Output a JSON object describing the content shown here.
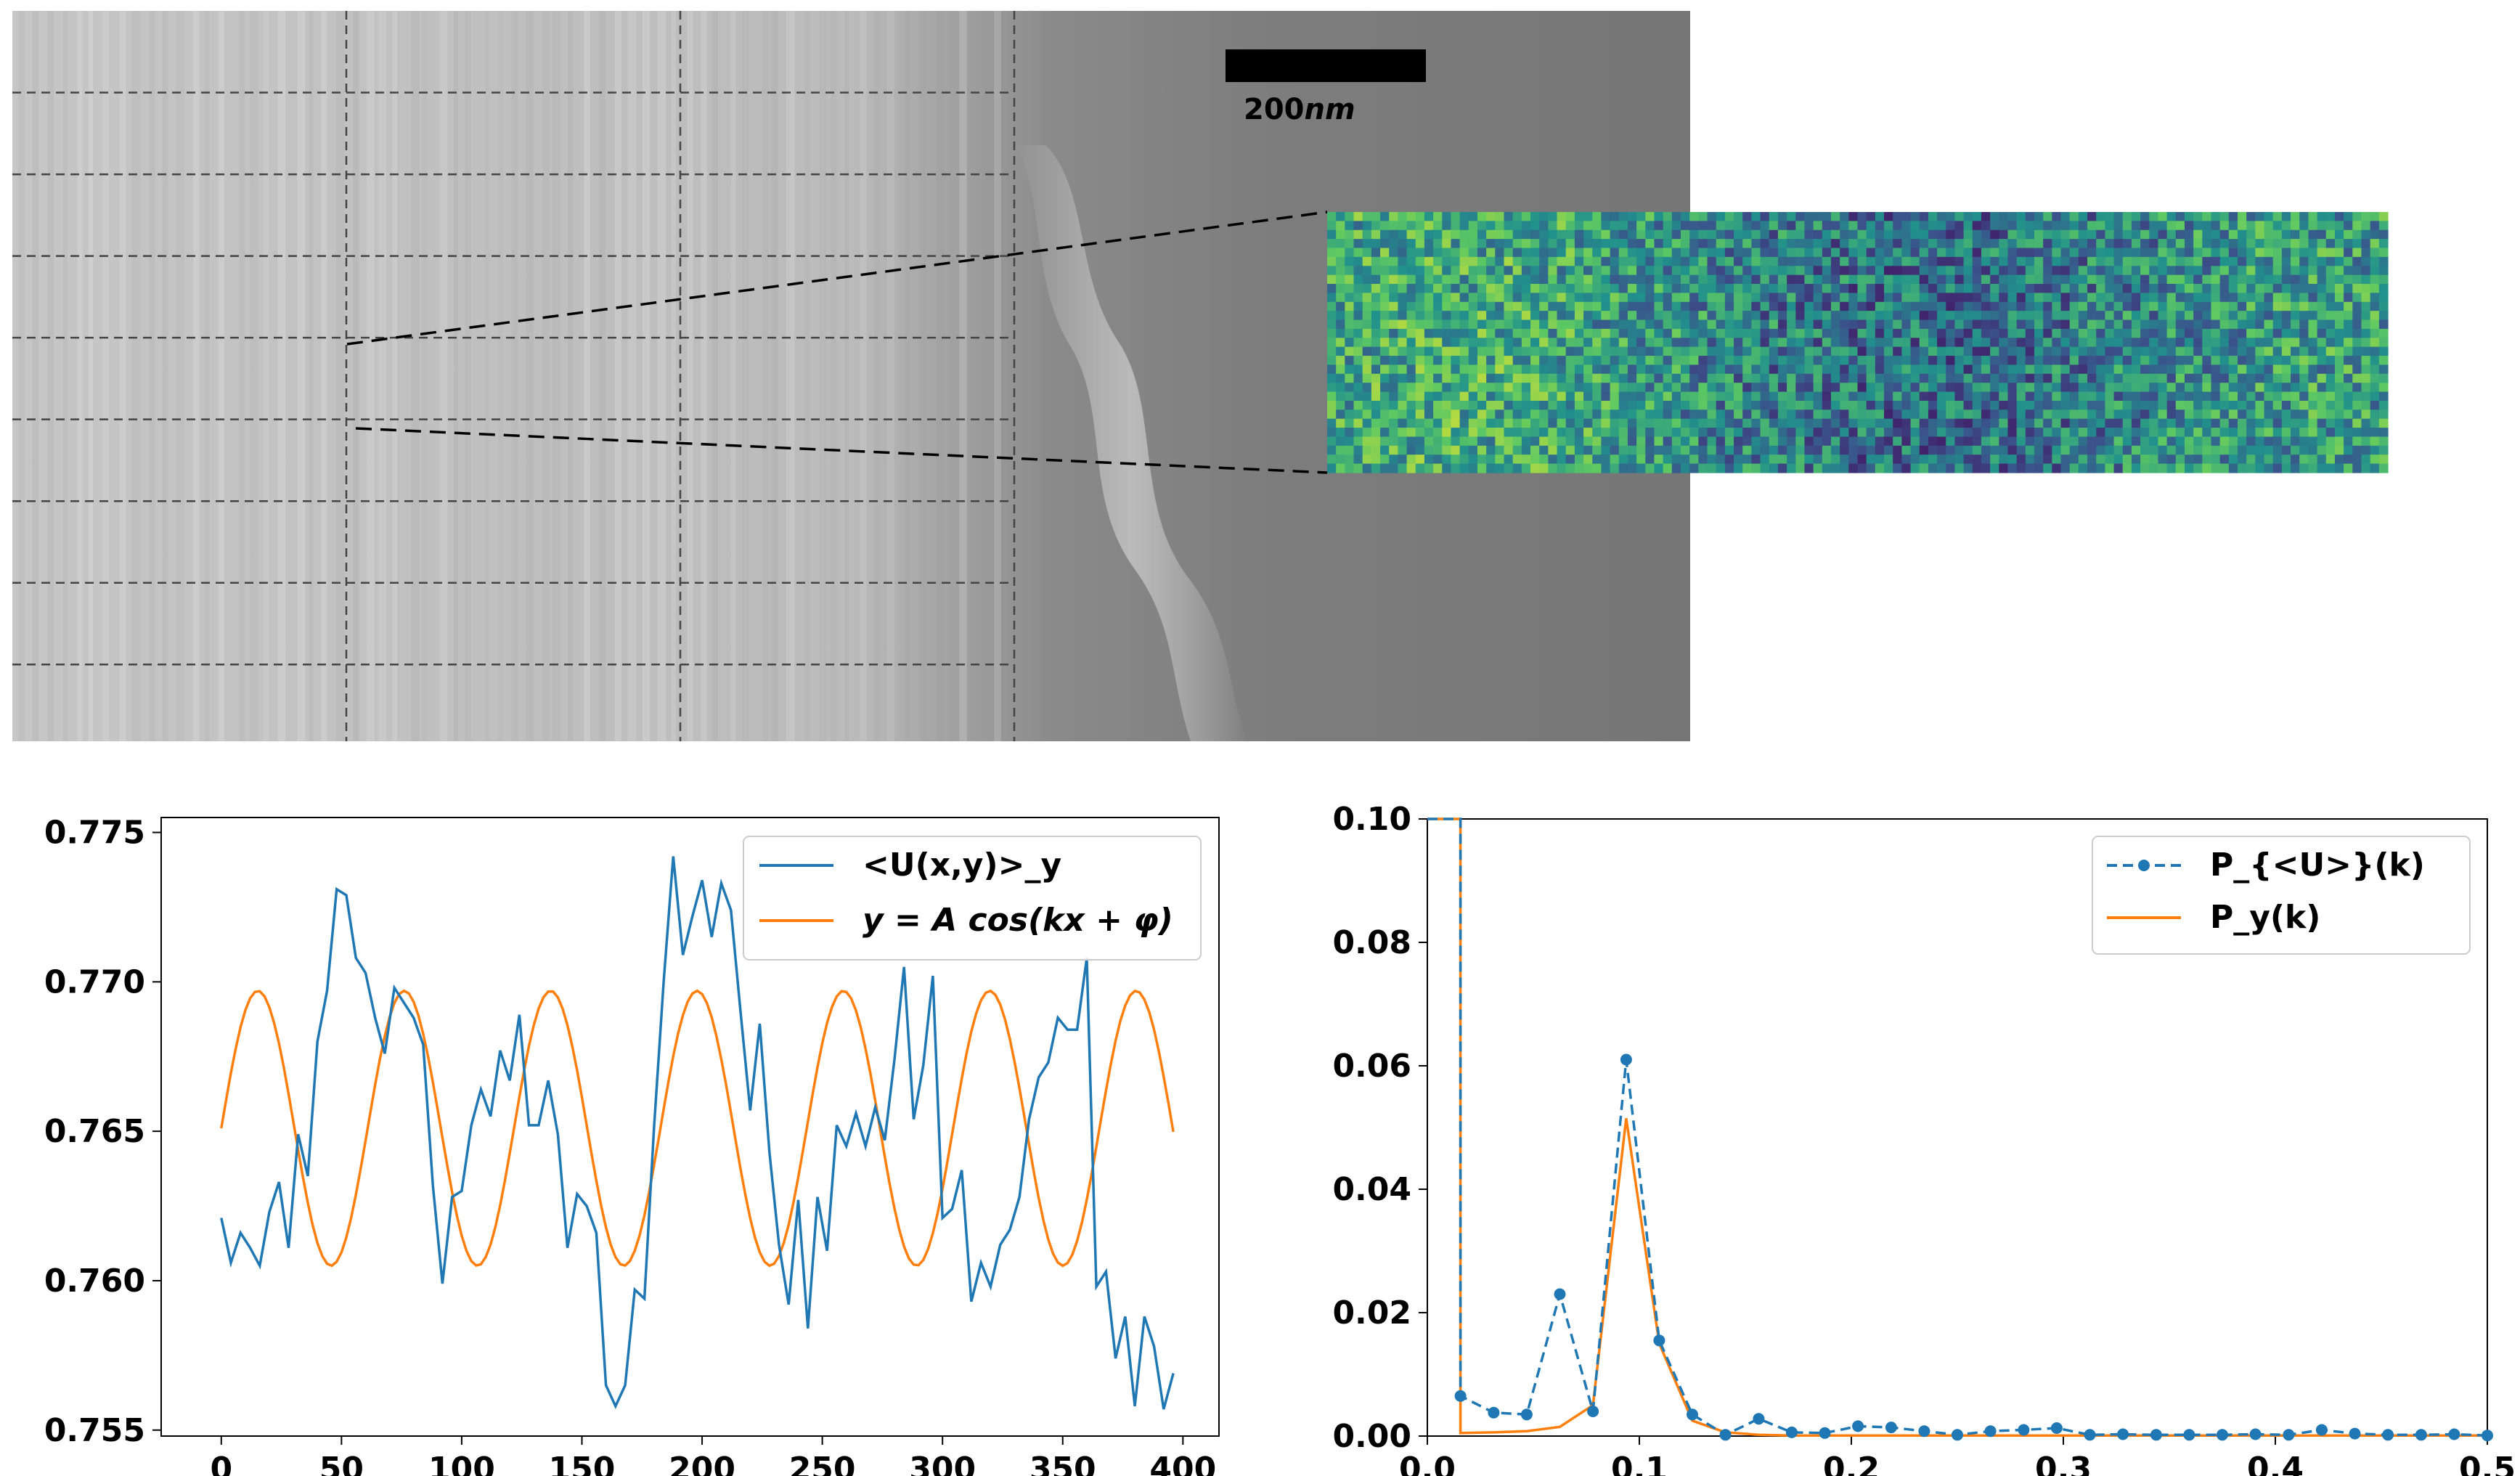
{
  "micrograph": {
    "scale_bar_label": "200",
    "scale_bar_unit": "nm",
    "grid_rows": 9,
    "grid_cols": 3,
    "colors": {
      "bright": "#c4c4c4",
      "dark": "#7a7a7a"
    }
  },
  "heatmap": {
    "colormap": "viridis",
    "rows": 29,
    "cols": 120
  },
  "chart_data": [
    {
      "type": "line",
      "title": "",
      "xlabel": "",
      "ylabel": "",
      "xlim": [
        -25,
        415
      ],
      "ylim": [
        0.7548,
        0.7755
      ],
      "xticks": [
        0,
        50,
        100,
        150,
        200,
        250,
        300,
        350,
        400
      ],
      "xtick_labels": [
        "0",
        "50",
        "100",
        "150",
        "200",
        "250",
        "300",
        "350",
        "400"
      ],
      "yticks": [
        0.755,
        0.76,
        0.765,
        0.77,
        0.775
      ],
      "ytick_labels": [
        "0.755",
        "0.760",
        "0.765",
        "0.770",
        "0.775"
      ],
      "legend_position": "top-right",
      "series": [
        {
          "name": "<U(x,y)>_y",
          "color": "#1f77b4",
          "x": [
            0,
            4,
            8,
            12,
            16,
            20,
            24,
            28,
            32,
            36,
            40,
            44,
            48,
            52,
            56,
            60,
            64,
            68,
            72,
            76,
            80,
            84,
            88,
            92,
            96,
            100,
            104,
            108,
            112,
            116,
            120,
            124,
            128,
            132,
            136,
            140,
            144,
            148,
            152,
            156,
            160,
            164,
            168,
            172,
            176,
            180,
            184,
            188,
            192,
            196,
            200,
            204,
            208,
            212,
            216,
            220,
            224,
            228,
            232,
            236,
            240,
            244,
            248,
            252,
            256,
            260,
            264,
            268,
            272,
            276,
            280,
            284,
            288,
            292,
            296,
            300,
            304,
            308,
            312,
            316,
            320,
            324,
            328,
            332,
            336,
            340,
            344,
            348,
            352,
            356,
            360,
            364,
            368,
            372,
            376,
            380,
            384,
            388,
            392,
            396
          ],
          "values": [
            0.7621,
            0.7606,
            0.7616,
            0.7611,
            0.7605,
            0.7623,
            0.7633,
            0.7611,
            0.7649,
            0.7635,
            0.768,
            0.7697,
            0.7731,
            0.7729,
            0.7708,
            0.7703,
            0.7688,
            0.7676,
            0.7698,
            0.7693,
            0.7688,
            0.7679,
            0.7632,
            0.7599,
            0.7628,
            0.763,
            0.7652,
            0.7664,
            0.7655,
            0.7677,
            0.7667,
            0.7689,
            0.7652,
            0.7652,
            0.7667,
            0.7649,
            0.7611,
            0.7629,
            0.7625,
            0.7616,
            0.7565,
            0.7558,
            0.7565,
            0.7597,
            0.7594,
            0.7651,
            0.77,
            0.7742,
            0.7709,
            0.7722,
            0.7734,
            0.7715,
            0.7733,
            0.7724,
            0.769,
            0.7657,
            0.7686,
            0.7643,
            0.7612,
            0.7592,
            0.7627,
            0.7584,
            0.7628,
            0.761,
            0.7652,
            0.7645,
            0.7656,
            0.7645,
            0.7658,
            0.7647,
            0.7674,
            0.7705,
            0.7654,
            0.7672,
            0.7702,
            0.7621,
            0.7624,
            0.7637,
            0.7593,
            0.7606,
            0.7598,
            0.7612,
            0.7617,
            0.7628,
            0.7654,
            0.7668,
            0.7673,
            0.7688,
            0.7684,
            0.7684,
            0.7708,
            0.7598,
            0.7603,
            0.7574,
            0.7588,
            0.7558,
            0.7588,
            0.7578,
            0.7557,
            0.7569
          ]
        },
        {
          "name": "y = A cos(kx + φ)",
          "color": "#ff7f0e",
          "amplitude": 0.0046,
          "offset": 0.7651,
          "wavenumber": 0.1032,
          "phase": -1.571,
          "x_range": [
            0,
            397
          ]
        }
      ]
    },
    {
      "type": "line",
      "title": "",
      "xlabel": "",
      "ylabel": "",
      "xlim": [
        0.0,
        0.5
      ],
      "ylim": [
        0.0,
        0.1
      ],
      "xticks": [
        0.0,
        0.1,
        0.2,
        0.3,
        0.4,
        0.5
      ],
      "xtick_labels": [
        "0.0",
        "0.1",
        "0.2",
        "0.3",
        "0.4",
        "0.5"
      ],
      "yticks": [
        0.0,
        0.02,
        0.04,
        0.06,
        0.08,
        0.1
      ],
      "ytick_labels": [
        "0.00",
        "0.02",
        "0.04",
        "0.06",
        "0.08",
        "0.10"
      ],
      "legend_position": "top-right",
      "series": [
        {
          "name": "P_{<U>}(k)",
          "color": "#1f77b4",
          "style": "dashed",
          "marker": "circle",
          "x": [
            0.0,
            0.0156,
            0.0156,
            0.0313,
            0.0469,
            0.0625,
            0.0781,
            0.0938,
            0.1094,
            0.125,
            0.1406,
            0.1563,
            0.1719,
            0.1875,
            0.2031,
            0.2188,
            0.2344,
            0.25,
            0.2656,
            0.2813,
            0.2969,
            0.3125,
            0.3281,
            0.3438,
            0.3594,
            0.375,
            0.3906,
            0.4063,
            0.4219,
            0.4375,
            0.4531,
            0.4688,
            0.4844,
            0.5
          ],
          "values": [
            0.1,
            0.1,
            0.0065,
            0.0038,
            0.0035,
            0.023,
            0.004,
            0.061,
            0.0155,
            0.0035,
            0.0002,
            0.0028,
            0.0006,
            0.0005,
            0.0016,
            0.0014,
            0.0008,
            0.0002,
            0.0008,
            0.001,
            0.0013,
            0.0002,
            0.0003,
            0.0002,
            0.0002,
            0.0002,
            0.0003,
            0.0002,
            0.001,
            0.0004,
            0.0002,
            0.0002,
            0.0003,
            0.0001
          ]
        },
        {
          "name": "P_y(k)",
          "color": "#ff7f0e",
          "style": "solid",
          "x": [
            0.0,
            0.0156,
            0.0156,
            0.0313,
            0.0469,
            0.0625,
            0.0781,
            0.0938,
            0.1094,
            0.125,
            0.1406,
            0.1563,
            0.1719,
            0.1875,
            0.2031,
            0.25,
            0.3,
            0.35,
            0.4,
            0.45,
            0.5
          ],
          "values": [
            0.1,
            0.1,
            0.0005,
            0.0006,
            0.0008,
            0.0015,
            0.005,
            0.0515,
            0.015,
            0.0025,
            0.0006,
            0.0002,
            0.0001,
            0.0001,
            0.0001,
            0.0001,
            0.0001,
            0.0001,
            0.0001,
            0.0001,
            0.0001
          ]
        }
      ]
    }
  ]
}
